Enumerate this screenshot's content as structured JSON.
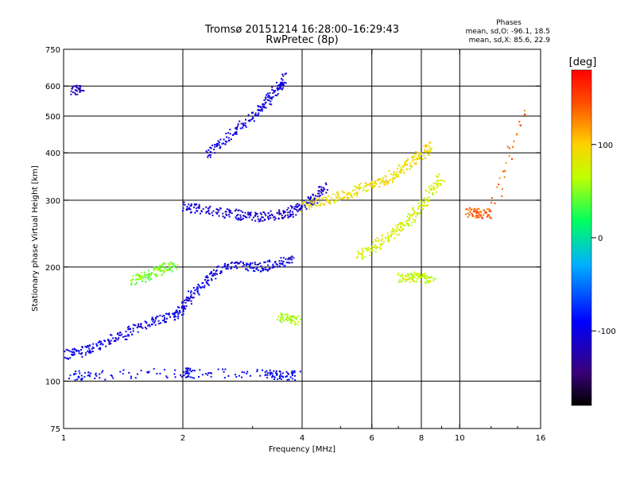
{
  "chart_data": {
    "type": "scatter",
    "title": "Tromsø 20151214 16:28:00–16:29:43",
    "subtitle": "RwPretec (8p)",
    "xlabel": "Frequency [MHz]",
    "ylabel": "Stationary phase Virtual Height [km]",
    "x_scale": "log",
    "y_scale": "log",
    "xlim": [
      1,
      16
    ],
    "ylim": [
      75,
      750
    ],
    "x_ticks": [
      {
        "value": 1,
        "label": "1"
      },
      {
        "value": 2,
        "label": "2"
      },
      {
        "value": 4,
        "label": "4"
      },
      {
        "value": 6,
        "label": "6"
      },
      {
        "value": 8,
        "label": "8"
      },
      {
        "value": 10,
        "label": "10"
      },
      {
        "value": 16,
        "label": "16"
      }
    ],
    "x_minor_ticks": [
      3,
      5,
      7,
      9,
      12,
      14
    ],
    "x_gridlines": [
      2,
      4,
      6,
      8,
      10
    ],
    "y_ticks": [
      {
        "value": 75,
        "label": "75"
      },
      {
        "value": 100,
        "label": "100"
      },
      {
        "value": 200,
        "label": "200"
      },
      {
        "value": 300,
        "label": "300"
      },
      {
        "value": 400,
        "label": "400"
      },
      {
        "value": 500,
        "label": "500"
      },
      {
        "value": 600,
        "label": "600"
      },
      {
        "value": 750,
        "label": "750"
      }
    ],
    "y_gridlines": [
      100,
      200,
      300,
      400,
      500,
      600
    ],
    "grid": true,
    "legend_header": "Phases",
    "legend_lines": [
      "mean, sd,O: -96.1, 18.5",
      "mean, sd,X:  85.6, 22.9"
    ],
    "colorbar": {
      "label": "[deg]",
      "range": [
        -180,
        180
      ],
      "ticks": [
        {
          "value": 100,
          "label": "100"
        },
        {
          "value": 0,
          "label": "0"
        },
        {
          "value": -100,
          "label": "-100"
        }
      ],
      "colors": [
        "#000000",
        "#3a007a",
        "#0000ff",
        "#00b0ff",
        "#00ff60",
        "#c0ff00",
        "#ffd000",
        "#ff5000",
        "#ff0000"
      ]
    },
    "series": [
      {
        "mode": "O",
        "phase": -100,
        "x": [
          1.0,
          1.1,
          1.2,
          1.35,
          1.5,
          1.7,
          1.9,
          2.0,
          2.1,
          2.3,
          2.5,
          2.8,
          3.1,
          3.4,
          3.8
        ],
        "y": [
          118,
          120,
          124,
          130,
          138,
          145,
          150,
          158,
          170,
          185,
          200,
          205,
          200,
          205,
          210
        ]
      },
      {
        "mode": "O",
        "phase": -110,
        "x": [
          2.0,
          2.2,
          2.5,
          2.8,
          3.1,
          3.4,
          3.7,
          4.0,
          4.3,
          4.6
        ],
        "y": [
          290,
          285,
          280,
          275,
          272,
          275,
          280,
          290,
          305,
          330
        ]
      },
      {
        "mode": "O",
        "phase": -105,
        "x": [
          2.3,
          2.5,
          2.8,
          3.1,
          3.3,
          3.5,
          3.6
        ],
        "y": [
          400,
          430,
          470,
          520,
          560,
          600,
          640
        ]
      },
      {
        "mode": "X",
        "phase": 90,
        "x": [
          4.0,
          4.5,
          5.0,
          5.5,
          6.0,
          6.5,
          7.0,
          7.5,
          8.0,
          8.5
        ],
        "y": [
          290,
          300,
          310,
          320,
          330,
          340,
          360,
          380,
          400,
          420
        ]
      },
      {
        "mode": "X",
        "phase": 75,
        "x": [
          5.5,
          6.0,
          6.5,
          7.0,
          7.5,
          8.0,
          8.5,
          9.0
        ],
        "y": [
          215,
          225,
          240,
          255,
          270,
          290,
          320,
          350
        ]
      },
      {
        "mode": "X",
        "phase": 45,
        "x": [
          1.5,
          1.6,
          1.7,
          1.8,
          1.9
        ],
        "y": [
          185,
          190,
          195,
          200,
          202
        ]
      },
      {
        "mode": "X",
        "phase": 60,
        "x": [
          3.5,
          3.7,
          3.9
        ],
        "y": [
          148,
          146,
          145
        ]
      },
      {
        "mode": "X",
        "phase": 70,
        "x": [
          7.0,
          7.5,
          8.0,
          8.5
        ],
        "y": [
          188,
          189,
          188,
          187
        ]
      },
      {
        "mode": "O",
        "phase": -95,
        "x": [
          1.05,
          1.2,
          2.0,
          2.1,
          3.2,
          3.5,
          3.9
        ],
        "y": [
          104,
          104,
          106,
          105,
          105,
          104,
          104
        ]
      },
      {
        "mode": "O",
        "phase": -120,
        "x": [
          1.05,
          1.1
        ],
        "y": [
          590,
          585
        ]
      },
      {
        "mode": "X",
        "phase": 140,
        "x": [
          10.5,
          11.0,
          12.0,
          14.5
        ],
        "y": [
          280,
          278,
          278,
          540
        ]
      }
    ]
  }
}
